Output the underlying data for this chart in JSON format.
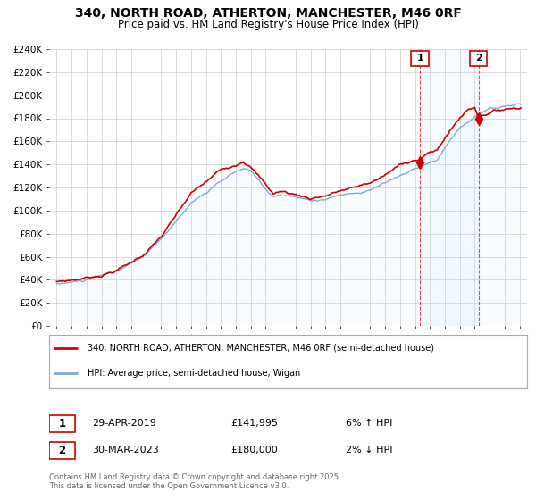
{
  "title": "340, NORTH ROAD, ATHERTON, MANCHESTER, M46 0RF",
  "subtitle": "Price paid vs. HM Land Registry's House Price Index (HPI)",
  "legend_line1": "340, NORTH ROAD, ATHERTON, MANCHESTER, M46 0RF (semi-detached house)",
  "legend_line2": "HPI: Average price, semi-detached house, Wigan",
  "footer": "Contains HM Land Registry data © Crown copyright and database right 2025.\nThis data is licensed under the Open Government Licence v3.0.",
  "sale1_date": "29-APR-2019",
  "sale1_price": "£141,995",
  "sale1_hpi": "6% ↑ HPI",
  "sale2_date": "30-MAR-2023",
  "sale2_price": "£180,000",
  "sale2_hpi": "2% ↓ HPI",
  "ylim": [
    0,
    240000
  ],
  "yticks": [
    0,
    20000,
    40000,
    60000,
    80000,
    100000,
    120000,
    140000,
    160000,
    180000,
    200000,
    220000,
    240000
  ],
  "ytick_labels": [
    "£0",
    "£20K",
    "£40K",
    "£60K",
    "£80K",
    "£100K",
    "£120K",
    "£140K",
    "£160K",
    "£180K",
    "£200K",
    "£220K",
    "£240K"
  ],
  "xlim_start": 1994.5,
  "xlim_end": 2026.5,
  "xticks": [
    1995,
    1996,
    1997,
    1998,
    1999,
    2000,
    2001,
    2002,
    2003,
    2004,
    2005,
    2006,
    2007,
    2008,
    2009,
    2010,
    2011,
    2012,
    2013,
    2014,
    2015,
    2016,
    2017,
    2018,
    2019,
    2020,
    2021,
    2022,
    2023,
    2024,
    2025,
    2026
  ],
  "line_color_red": "#cc0000",
  "line_color_blue": "#7aaadd",
  "fill_color_blue": "#ddeeff",
  "background_color": "#ffffff",
  "grid_color": "#cccccc",
  "sale1_year": 2019.33,
  "sale2_year": 2023.25,
  "sale1_value": 141995,
  "sale2_value": 180000
}
